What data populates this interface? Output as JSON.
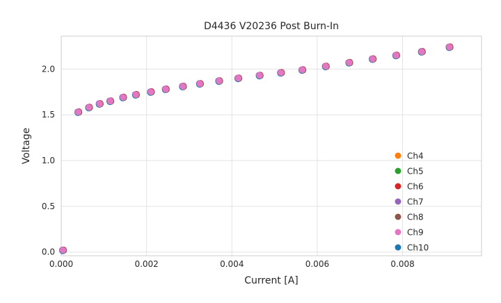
{
  "chart_data": {
    "type": "scatter",
    "title": "D4436 V20236 Post Burn-In",
    "xlabel": "Current [A]",
    "ylabel": "Voltage",
    "xlim": [
      0,
      0.00985
    ],
    "ylim": [
      -0.04,
      2.36
    ],
    "xtick_values": [
      0,
      0.002,
      0.004,
      0.006,
      0.008
    ],
    "xtick_labels": [
      "0.000",
      "0.002",
      "0.004",
      "0.006",
      "0.008"
    ],
    "ytick_values": [
      0.0,
      0.5,
      1.0,
      1.5,
      2.0
    ],
    "ytick_labels": [
      "0.0",
      "0.5",
      "1.0",
      "1.5",
      "2.0"
    ],
    "grid": true,
    "legend_position": "lower right",
    "x": [
      4e-05,
      0.0004,
      0.00065,
      0.0009,
      0.00115,
      0.00145,
      0.00175,
      0.0021,
      0.00245,
      0.00285,
      0.00325,
      0.0037,
      0.00415,
      0.00465,
      0.00515,
      0.00565,
      0.0062,
      0.00675,
      0.0073,
      0.00785,
      0.00845,
      0.0091
    ],
    "y_shared": [
      0.02,
      1.53,
      1.58,
      1.62,
      1.65,
      1.69,
      1.72,
      1.75,
      1.78,
      1.81,
      1.84,
      1.87,
      1.9,
      1.93,
      1.96,
      1.99,
      2.03,
      2.07,
      2.11,
      2.15,
      2.19,
      2.24
    ],
    "overlap_note": "All channel series plot coincident points; markers overlap within dot size with Ch9 (pink) drawn on top",
    "series": [
      {
        "name": "Ch4",
        "color": "#ff7f0e"
      },
      {
        "name": "Ch5",
        "color": "#2ca02c"
      },
      {
        "name": "Ch6",
        "color": "#d62728"
      },
      {
        "name": "Ch7",
        "color": "#9467bd"
      },
      {
        "name": "Ch8",
        "color": "#8c564b"
      },
      {
        "name": "Ch9",
        "color": "#e377c2"
      },
      {
        "name": "Ch10",
        "color": "#1f77b4"
      }
    ]
  }
}
